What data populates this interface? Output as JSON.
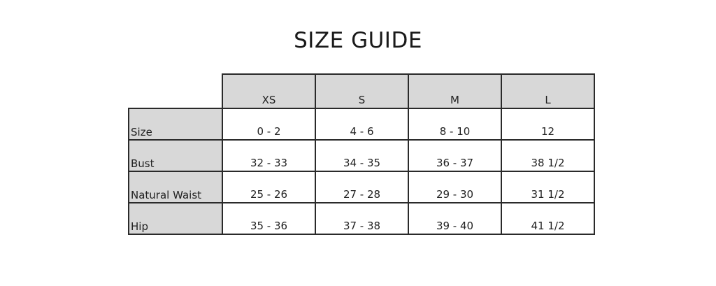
{
  "title": "SIZE GUIDE",
  "table": {
    "columns": [
      "XS",
      "S",
      "M",
      "L"
    ],
    "rows": [
      {
        "label": "Size",
        "values": [
          "0 - 2",
          "4 - 6",
          "8 - 10",
          "12"
        ]
      },
      {
        "label": "Bust",
        "values": [
          "32 - 33",
          "34 - 35",
          "36 - 37",
          "38 1/2"
        ]
      },
      {
        "label": "Natural Waist",
        "values": [
          "25 - 26",
          "27 - 28",
          "29 - 30",
          "31 1/2"
        ]
      },
      {
        "label": "Hip",
        "values": [
          "35 - 36",
          "37 - 38",
          "39 - 40",
          "41 1/2"
        ]
      }
    ]
  },
  "colors": {
    "header_fill": "#d8d8d8",
    "border": "#2a2a2a"
  }
}
